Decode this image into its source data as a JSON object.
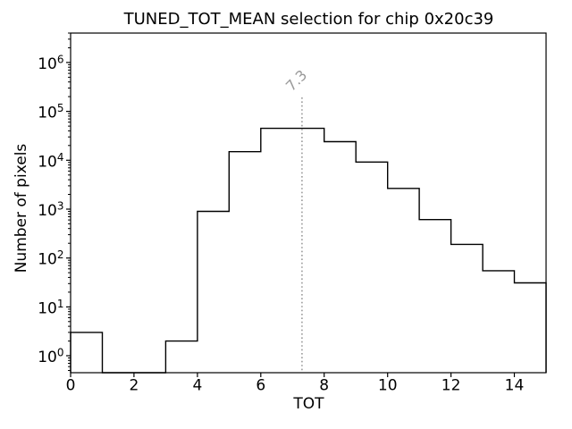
{
  "chart_data": {
    "type": "bar",
    "subtype": "step-histogram",
    "title": "TUNED_TOT_MEAN selection for chip 0x20c39",
    "xlabel": "TOT",
    "ylabel": "Number of pixels",
    "yscale": "log",
    "grid": false,
    "bin_edges": [
      0,
      1,
      2,
      3,
      4,
      5,
      6,
      7,
      8,
      9,
      10,
      11,
      12,
      13,
      14,
      15
    ],
    "values": [
      3,
      0,
      0,
      2,
      900,
      15000,
      45000,
      45000,
      24000,
      9200,
      2650,
      610,
      190,
      55,
      31
    ],
    "xlim": [
      0,
      15
    ],
    "ylim": [
      0.45,
      4000000
    ],
    "xticks": [
      0,
      2,
      4,
      6,
      8,
      10,
      12,
      14
    ],
    "ytick_exponents": [
      0,
      1,
      2,
      3,
      4,
      5,
      6
    ],
    "line_color": "#000000",
    "threshold": {
      "x": 7.3,
      "label": "7.3",
      "color": "#999999",
      "line_style": "dotted"
    }
  },
  "colors": {
    "background": "#ffffff",
    "axes": "#000000"
  }
}
